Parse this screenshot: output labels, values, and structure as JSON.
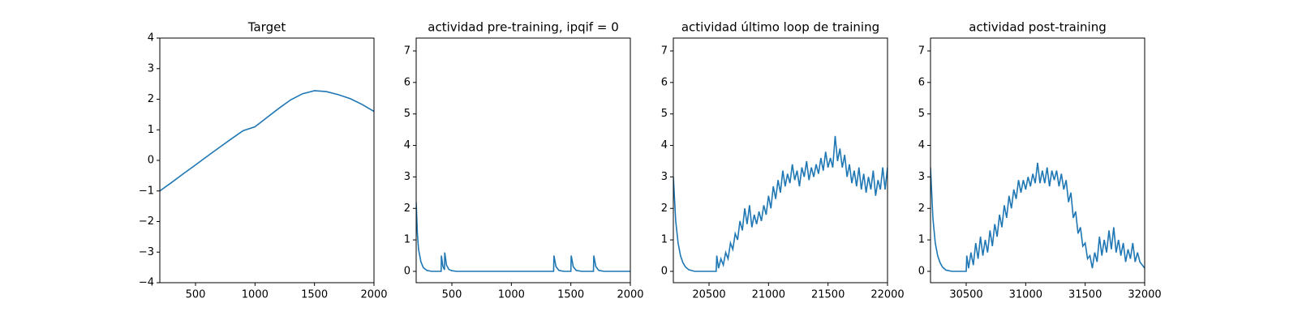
{
  "chart_data": [
    {
      "type": "line",
      "title": "Target",
      "color": "#1f77b4",
      "x": [
        200,
        300,
        400,
        500,
        600,
        700,
        800,
        900,
        1000,
        1100,
        1200,
        1300,
        1400,
        1500,
        1600,
        1700,
        1800,
        1900,
        2000
      ],
      "values": [
        -1.0,
        -0.72,
        -0.43,
        -0.15,
        0.14,
        0.42,
        0.7,
        0.97,
        1.1,
        1.4,
        1.7,
        1.98,
        2.18,
        2.28,
        2.25,
        2.15,
        2.02,
        1.83,
        1.6
      ],
      "xlim": [
        200,
        2000
      ],
      "ylim": [
        -4,
        4
      ],
      "xticks": [
        500,
        1000,
        1500,
        2000
      ],
      "yticks": [
        {
          "value": -4,
          "label": "−4"
        },
        {
          "value": -3,
          "label": "−3"
        },
        {
          "value": -2,
          "label": "−2"
        },
        {
          "value": -1,
          "label": "−1"
        },
        0,
        1,
        2,
        3,
        4
      ]
    },
    {
      "type": "line",
      "title": "actividad pre-training, ipqif = 0",
      "color": "#1f77b4",
      "x": [
        200,
        210,
        220,
        240,
        260,
        290,
        330,
        410,
        412,
        425,
        438,
        440,
        455,
        475,
        500,
        540,
        1355,
        1358,
        1375,
        1400,
        1440,
        1500,
        1503,
        1520,
        1545,
        1590,
        1690,
        1693,
        1710,
        1735,
        1780,
        2000
      ],
      "values": [
        2.2,
        1.2,
        0.7,
        0.3,
        0.12,
        0.03,
        0,
        0,
        0.5,
        0.15,
        0.05,
        0.6,
        0.2,
        0.06,
        0.02,
        0,
        0,
        0.5,
        0.15,
        0.03,
        0,
        0,
        0.5,
        0.15,
        0.03,
        0,
        0,
        0.5,
        0.15,
        0.03,
        0,
        0
      ],
      "xlim": [
        200,
        2000
      ],
      "ylim": [
        -0.36,
        7.41
      ],
      "xticks": [
        500,
        1000,
        1500,
        2000
      ],
      "yticks": [
        0,
        1,
        2,
        3,
        4,
        5,
        6,
        7
      ]
    },
    {
      "type": "line",
      "title": "actividad último loop de training",
      "color": "#1f77b4",
      "x": [
        20200,
        20220,
        20240,
        20260,
        20280,
        20300,
        20330,
        20380,
        20450,
        20560,
        20565,
        20580,
        20600,
        20620,
        20640,
        20660,
        20680,
        20700,
        20720,
        20740,
        20760,
        20780,
        20800,
        20820,
        20840,
        20860,
        20880,
        20900,
        20920,
        20940,
        20960,
        20980,
        21000,
        21020,
        21040,
        21060,
        21080,
        21100,
        21120,
        21140,
        21160,
        21180,
        21200,
        21220,
        21240,
        21260,
        21280,
        21300,
        21320,
        21340,
        21360,
        21380,
        21400,
        21420,
        21440,
        21460,
        21480,
        21500,
        21520,
        21540,
        21560,
        21580,
        21600,
        21620,
        21640,
        21660,
        21680,
        21700,
        21720,
        21740,
        21760,
        21780,
        21800,
        21820,
        21840,
        21860,
        21880,
        21900,
        21920,
        21940,
        21960,
        21980,
        22000
      ],
      "values": [
        3.0,
        1.6,
        0.9,
        0.5,
        0.28,
        0.15,
        0.05,
        0,
        0,
        0,
        0.5,
        0.1,
        0.4,
        0.2,
        0.6,
        0.4,
        0.9,
        0.7,
        1.2,
        1.0,
        1.6,
        1.3,
        2.0,
        1.5,
        2.1,
        1.4,
        1.8,
        1.5,
        1.9,
        1.6,
        2.1,
        1.8,
        2.4,
        2.0,
        2.7,
        2.3,
        2.9,
        2.5,
        3.2,
        2.7,
        3.1,
        2.8,
        3.4,
        2.9,
        3.2,
        2.7,
        3.3,
        3.0,
        3.5,
        2.9,
        3.3,
        3.0,
        3.4,
        3.1,
        3.6,
        3.2,
        3.8,
        3.3,
        3.6,
        3.3,
        4.3,
        3.5,
        3.9,
        3.3,
        3.7,
        3.0,
        3.4,
        2.8,
        3.2,
        2.7,
        3.3,
        2.6,
        3.1,
        2.5,
        3.0,
        2.6,
        3.2,
        2.4,
        2.9,
        2.6,
        3.3,
        2.6,
        3.3
      ],
      "xlim": [
        20200,
        22000
      ],
      "ylim": [
        -0.36,
        7.41
      ],
      "xticks": [
        20500,
        21000,
        21500,
        22000
      ],
      "yticks": [
        0,
        1,
        2,
        3,
        4,
        5,
        6,
        7
      ]
    },
    {
      "type": "line",
      "title": "actividad post-training",
      "color": "#1f77b4",
      "x": [
        30200,
        30220,
        30240,
        30260,
        30280,
        30300,
        30330,
        30380,
        30450,
        30500,
        30505,
        30520,
        30540,
        30560,
        30580,
        30600,
        30620,
        30640,
        30660,
        30680,
        30700,
        30720,
        30740,
        30760,
        30780,
        30800,
        30820,
        30840,
        30860,
        30880,
        30900,
        30920,
        30940,
        30960,
        30980,
        31000,
        31020,
        31040,
        31060,
        31080,
        31100,
        31120,
        31140,
        31160,
        31180,
        31200,
        31220,
        31240,
        31260,
        31280,
        31300,
        31320,
        31340,
        31360,
        31380,
        31400,
        31420,
        31440,
        31460,
        31480,
        31500,
        31520,
        31540,
        31560,
        31580,
        31600,
        31620,
        31640,
        31660,
        31680,
        31700,
        31720,
        31740,
        31760,
        31780,
        31800,
        31820,
        31840,
        31860,
        31880,
        31900,
        31920,
        31940,
        31960,
        31980,
        32000
      ],
      "values": [
        3.3,
        1.7,
        0.9,
        0.5,
        0.28,
        0.14,
        0.04,
        0,
        0,
        0,
        0.5,
        0.1,
        0.6,
        0.2,
        0.9,
        0.4,
        1.1,
        0.5,
        1.0,
        0.6,
        1.3,
        0.8,
        1.5,
        1.1,
        1.8,
        1.4,
        2.1,
        1.7,
        2.4,
        2.0,
        2.6,
        2.3,
        2.9,
        2.5,
        2.9,
        2.6,
        3.0,
        2.7,
        3.1,
        2.8,
        3.45,
        2.8,
        3.2,
        2.8,
        3.3,
        2.7,
        3.2,
        2.9,
        3.2,
        2.7,
        3.1,
        2.6,
        2.9,
        2.2,
        2.5,
        1.7,
        1.9,
        1.2,
        1.4,
        0.8,
        0.9,
        0.4,
        0.5,
        0.1,
        0.6,
        0.3,
        1.1,
        0.5,
        1.0,
        0.6,
        1.3,
        0.7,
        1.4,
        0.6,
        1.0,
        0.5,
        0.9,
        0.3,
        0.7,
        0.4,
        0.9,
        0.3,
        0.6,
        0.3,
        0.2,
        0.1
      ],
      "xlim": [
        30200,
        32000
      ],
      "ylim": [
        -0.36,
        7.41
      ],
      "xticks": [
        30500,
        31000,
        31500,
        32000
      ],
      "yticks": [
        0,
        1,
        2,
        3,
        4,
        5,
        6,
        7
      ]
    }
  ]
}
